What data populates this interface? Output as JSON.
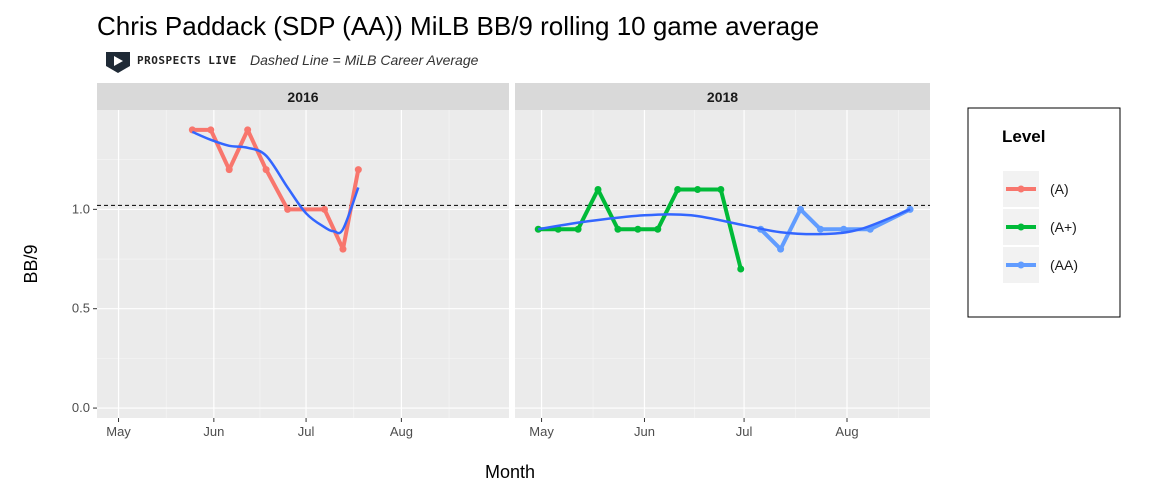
{
  "page": {
    "title": "Chris Paddack (SDP (AA)) MiLB BB/9 rolling 10 game average",
    "logo_text": "PROSPECTS LIVE",
    "logo_icon": "play-arrow-badge-icon",
    "subtitle": "Dashed Line = MiLB Career Average"
  },
  "chart_data": {
    "type": "line",
    "xlabel": "Month",
    "ylabel": "BB/9",
    "ylim": [
      -0.05,
      1.5
    ],
    "yticks": [
      0.0,
      0.5,
      1.0
    ],
    "ytick_labels": [
      "0.0",
      "0.5",
      "1.0"
    ],
    "career_average": 1.02,
    "grid": true,
    "legend_position": "right",
    "legend_title": "Level",
    "levels": [
      {
        "name": "(A)",
        "color": "#F8766D"
      },
      {
        "name": "(A+)",
        "color": "#00BA38"
      },
      {
        "name": "(AA)",
        "color": "#619CFF"
      }
    ],
    "smooth_color": "#3366FF",
    "panels": [
      {
        "strip": "2016",
        "xlim": [
          "2016-04-24",
          "2016-09-05"
        ],
        "xticks": [
          "2016-05-01",
          "2016-06-01",
          "2016-07-01",
          "2016-08-01"
        ],
        "xtick_labels": [
          "May",
          "Jun",
          "Jul",
          "Aug"
        ],
        "series": [
          {
            "name": "(A)",
            "points": [
              [
                "2016-05-25",
                1.4
              ],
              [
                "2016-05-31",
                1.4
              ],
              [
                "2016-06-06",
                1.2
              ],
              [
                "2016-06-12",
                1.4
              ],
              [
                "2016-06-18",
                1.2
              ],
              [
                "2016-06-25",
                1.0
              ],
              [
                "2016-07-07",
                1.0
              ],
              [
                "2016-07-13",
                0.8
              ],
              [
                "2016-07-18",
                1.2
              ]
            ]
          }
        ],
        "smooth": [
          [
            "2016-05-25",
            1.39
          ],
          [
            "2016-05-31",
            1.35
          ],
          [
            "2016-06-06",
            1.32
          ],
          [
            "2016-06-12",
            1.31
          ],
          [
            "2016-06-18",
            1.27
          ],
          [
            "2016-06-25",
            1.11
          ],
          [
            "2016-07-01",
            0.98
          ],
          [
            "2016-07-07",
            0.91
          ],
          [
            "2016-07-10",
            0.89
          ],
          [
            "2016-07-13",
            0.9
          ],
          [
            "2016-07-18",
            1.11
          ]
        ]
      },
      {
        "strip": "2018",
        "xlim": [
          "2018-04-23",
          "2018-08-26"
        ],
        "xticks": [
          "2018-05-01",
          "2018-06-01",
          "2018-07-01",
          "2018-08-01"
        ],
        "xtick_labels": [
          "May",
          "Jun",
          "Jul",
          "Aug"
        ],
        "series": [
          {
            "name": "(A+)",
            "points": [
              [
                "2018-04-30",
                0.9
              ],
              [
                "2018-05-06",
                0.9
              ],
              [
                "2018-05-12",
                0.9
              ],
              [
                "2018-05-18",
                1.1
              ],
              [
                "2018-05-24",
                0.9
              ],
              [
                "2018-05-30",
                0.9
              ],
              [
                "2018-06-05",
                0.9
              ],
              [
                "2018-06-11",
                1.1
              ],
              [
                "2018-06-17",
                1.1
              ],
              [
                "2018-06-24",
                1.1
              ],
              [
                "2018-06-30",
                0.7
              ]
            ]
          },
          {
            "name": "(AA)",
            "points": [
              [
                "2018-07-06",
                0.9
              ],
              [
                "2018-07-12",
                0.8
              ],
              [
                "2018-07-18",
                1.0
              ],
              [
                "2018-07-24",
                0.9
              ],
              [
                "2018-07-31",
                0.9
              ],
              [
                "2018-08-08",
                0.9
              ],
              [
                "2018-08-20",
                1.0
              ]
            ]
          }
        ],
        "smooth": [
          [
            "2018-04-30",
            0.9
          ],
          [
            "2018-05-15",
            0.94
          ],
          [
            "2018-06-01",
            0.97
          ],
          [
            "2018-06-15",
            0.97
          ],
          [
            "2018-07-01",
            0.92
          ],
          [
            "2018-07-12",
            0.885
          ],
          [
            "2018-07-25",
            0.876
          ],
          [
            "2018-08-05",
            0.9
          ],
          [
            "2018-08-20",
            1.0
          ]
        ]
      }
    ]
  }
}
